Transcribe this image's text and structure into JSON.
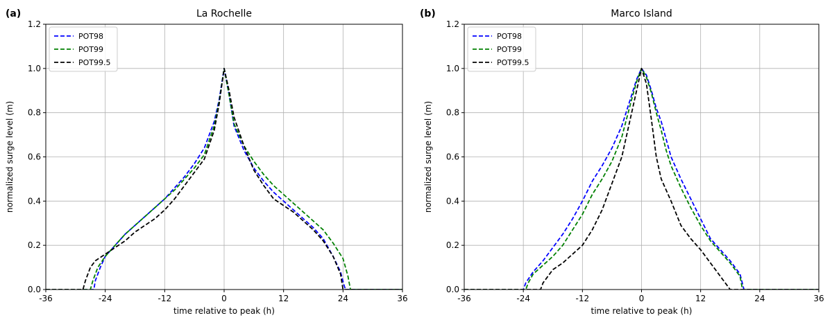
{
  "chart_data": [
    {
      "type": "line",
      "panel_label": "(a)",
      "title": "La Rochelle",
      "xlabel": "time relative to peak (h)",
      "ylabel": "normalized surge level (m)",
      "xlim": [
        -36,
        36
      ],
      "ylim": [
        0,
        1.2
      ],
      "xticks": [
        -36,
        -24,
        -12,
        0,
        12,
        24,
        36
      ],
      "yticks": [
        0.0,
        0.2,
        0.4,
        0.6,
        0.8,
        1.0,
        1.2
      ],
      "xtick_labels": [
        "-36",
        "-24",
        "-12",
        "0",
        "12",
        "24",
        "36"
      ],
      "ytick_labels": [
        "0.0",
        "0.2",
        "0.4",
        "0.6",
        "0.8",
        "1.0",
        "1.2"
      ],
      "grid": true,
      "legend_position": "top-left",
      "series": [
        {
          "name": "POT98",
          "color": "#0000ff",
          "dash": "dashed",
          "x": [
            -36,
            -26.3,
            -26,
            -25,
            -24,
            -22,
            -20,
            -18,
            -16,
            -14,
            -12,
            -10,
            -8,
            -6,
            -4,
            -2,
            -1,
            0,
            1,
            2,
            4,
            6,
            8,
            10,
            12,
            14,
            16,
            18,
            20,
            22,
            23.5,
            24.2,
            24.5,
            36
          ],
          "y": [
            0,
            0,
            0.04,
            0.1,
            0.15,
            0.2,
            0.25,
            0.29,
            0.33,
            0.37,
            0.41,
            0.46,
            0.51,
            0.57,
            0.64,
            0.76,
            0.86,
            1.0,
            0.88,
            0.74,
            0.63,
            0.55,
            0.49,
            0.44,
            0.4,
            0.36,
            0.32,
            0.28,
            0.23,
            0.15,
            0.08,
            0.02,
            0,
            0
          ]
        },
        {
          "name": "POT99",
          "color": "#008000",
          "dash": "dashed",
          "x": [
            -36,
            -27,
            -26.5,
            -25.5,
            -24,
            -22,
            -20,
            -18,
            -16,
            -14,
            -12,
            -10,
            -8,
            -6,
            -4,
            -2,
            -1,
            0,
            1,
            2,
            4,
            6,
            8,
            10,
            12,
            14,
            16,
            18,
            20,
            22,
            24,
            25,
            25.5,
            36
          ],
          "y": [
            0,
            0,
            0.04,
            0.1,
            0.15,
            0.2,
            0.25,
            0.29,
            0.33,
            0.37,
            0.41,
            0.45,
            0.5,
            0.55,
            0.61,
            0.74,
            0.85,
            1.0,
            0.88,
            0.75,
            0.65,
            0.58,
            0.52,
            0.47,
            0.43,
            0.39,
            0.35,
            0.31,
            0.27,
            0.21,
            0.14,
            0.06,
            0,
            0
          ]
        },
        {
          "name": "POT99.5",
          "color": "#000000",
          "dash": "dashed",
          "x": [
            -36,
            -28.5,
            -28,
            -27,
            -26,
            -24,
            -22,
            -20,
            -18,
            -16,
            -14,
            -12,
            -10,
            -8,
            -6,
            -4,
            -2,
            -1,
            0,
            1,
            2,
            4,
            6,
            8,
            10,
            12,
            14,
            16,
            18,
            20,
            22,
            23.5,
            24,
            36
          ],
          "y": [
            0,
            0,
            0.04,
            0.1,
            0.13,
            0.16,
            0.19,
            0.22,
            0.26,
            0.29,
            0.32,
            0.36,
            0.41,
            0.47,
            0.53,
            0.59,
            0.72,
            0.84,
            1.0,
            0.9,
            0.78,
            0.65,
            0.54,
            0.47,
            0.41,
            0.38,
            0.35,
            0.31,
            0.27,
            0.22,
            0.15,
            0.07,
            0,
            0
          ]
        }
      ]
    },
    {
      "type": "line",
      "panel_label": "(b)",
      "title": "Marco Island",
      "xlabel": "time relative to peak (h)",
      "ylabel": "normalized surge level (m)",
      "xlim": [
        -36,
        36
      ],
      "ylim": [
        0,
        1.2
      ],
      "xticks": [
        -36,
        -24,
        -12,
        0,
        12,
        24,
        36
      ],
      "yticks": [
        0.0,
        0.2,
        0.4,
        0.6,
        0.8,
        1.0,
        1.2
      ],
      "xtick_labels": [
        "-36",
        "-24",
        "-12",
        "0",
        "12",
        "24",
        "36"
      ],
      "ytick_labels": [
        "0.0",
        "0.2",
        "0.4",
        "0.6",
        "0.8",
        "1.0",
        "1.2"
      ],
      "grid": true,
      "legend_position": "top-left",
      "series": [
        {
          "name": "POT98",
          "color": "#0000ff",
          "dash": "dashed",
          "x": [
            -36,
            -24,
            -23.5,
            -22,
            -20,
            -18,
            -16,
            -14,
            -12,
            -10,
            -8,
            -6,
            -4,
            -2,
            -1,
            0,
            1,
            2,
            3,
            4,
            5,
            6,
            8,
            10,
            12,
            14,
            16,
            18,
            20,
            20.8,
            36
          ],
          "y": [
            0,
            0,
            0.03,
            0.08,
            0.13,
            0.19,
            0.25,
            0.32,
            0.4,
            0.49,
            0.56,
            0.64,
            0.74,
            0.88,
            0.95,
            1.0,
            0.97,
            0.9,
            0.82,
            0.76,
            0.68,
            0.6,
            0.5,
            0.41,
            0.32,
            0.23,
            0.18,
            0.13,
            0.07,
            0,
            0
          ]
        },
        {
          "name": "POT99",
          "color": "#008000",
          "dash": "dashed",
          "x": [
            -36,
            -23.5,
            -23,
            -22,
            -20,
            -18,
            -16,
            -14,
            -12,
            -10,
            -8,
            -6,
            -4,
            -2,
            -1,
            0,
            1,
            2,
            3,
            4,
            5,
            6,
            8,
            10,
            12,
            14,
            16,
            18,
            20,
            20.5,
            36
          ],
          "y": [
            0,
            0,
            0.03,
            0.07,
            0.11,
            0.15,
            0.2,
            0.27,
            0.34,
            0.43,
            0.5,
            0.58,
            0.69,
            0.86,
            0.94,
            1.0,
            0.96,
            0.89,
            0.8,
            0.72,
            0.63,
            0.56,
            0.46,
            0.37,
            0.29,
            0.22,
            0.17,
            0.12,
            0.06,
            0,
            0
          ]
        },
        {
          "name": "POT99.5",
          "color": "#000000",
          "dash": "dashed",
          "x": [
            -36,
            -20.5,
            -20,
            -19,
            -18,
            -16,
            -14,
            -12,
            -10,
            -8,
            -6,
            -4,
            -2,
            -1,
            0,
            1,
            2,
            3,
            4,
            6,
            8,
            10,
            12,
            14,
            16,
            17,
            18,
            36
          ],
          "y": [
            0,
            0,
            0.03,
            0.06,
            0.09,
            0.12,
            0.16,
            0.2,
            0.27,
            0.36,
            0.48,
            0.6,
            0.8,
            0.9,
            1.0,
            0.93,
            0.77,
            0.6,
            0.5,
            0.4,
            0.29,
            0.23,
            0.18,
            0.12,
            0.06,
            0.03,
            0,
            0
          ]
        }
      ]
    }
  ]
}
